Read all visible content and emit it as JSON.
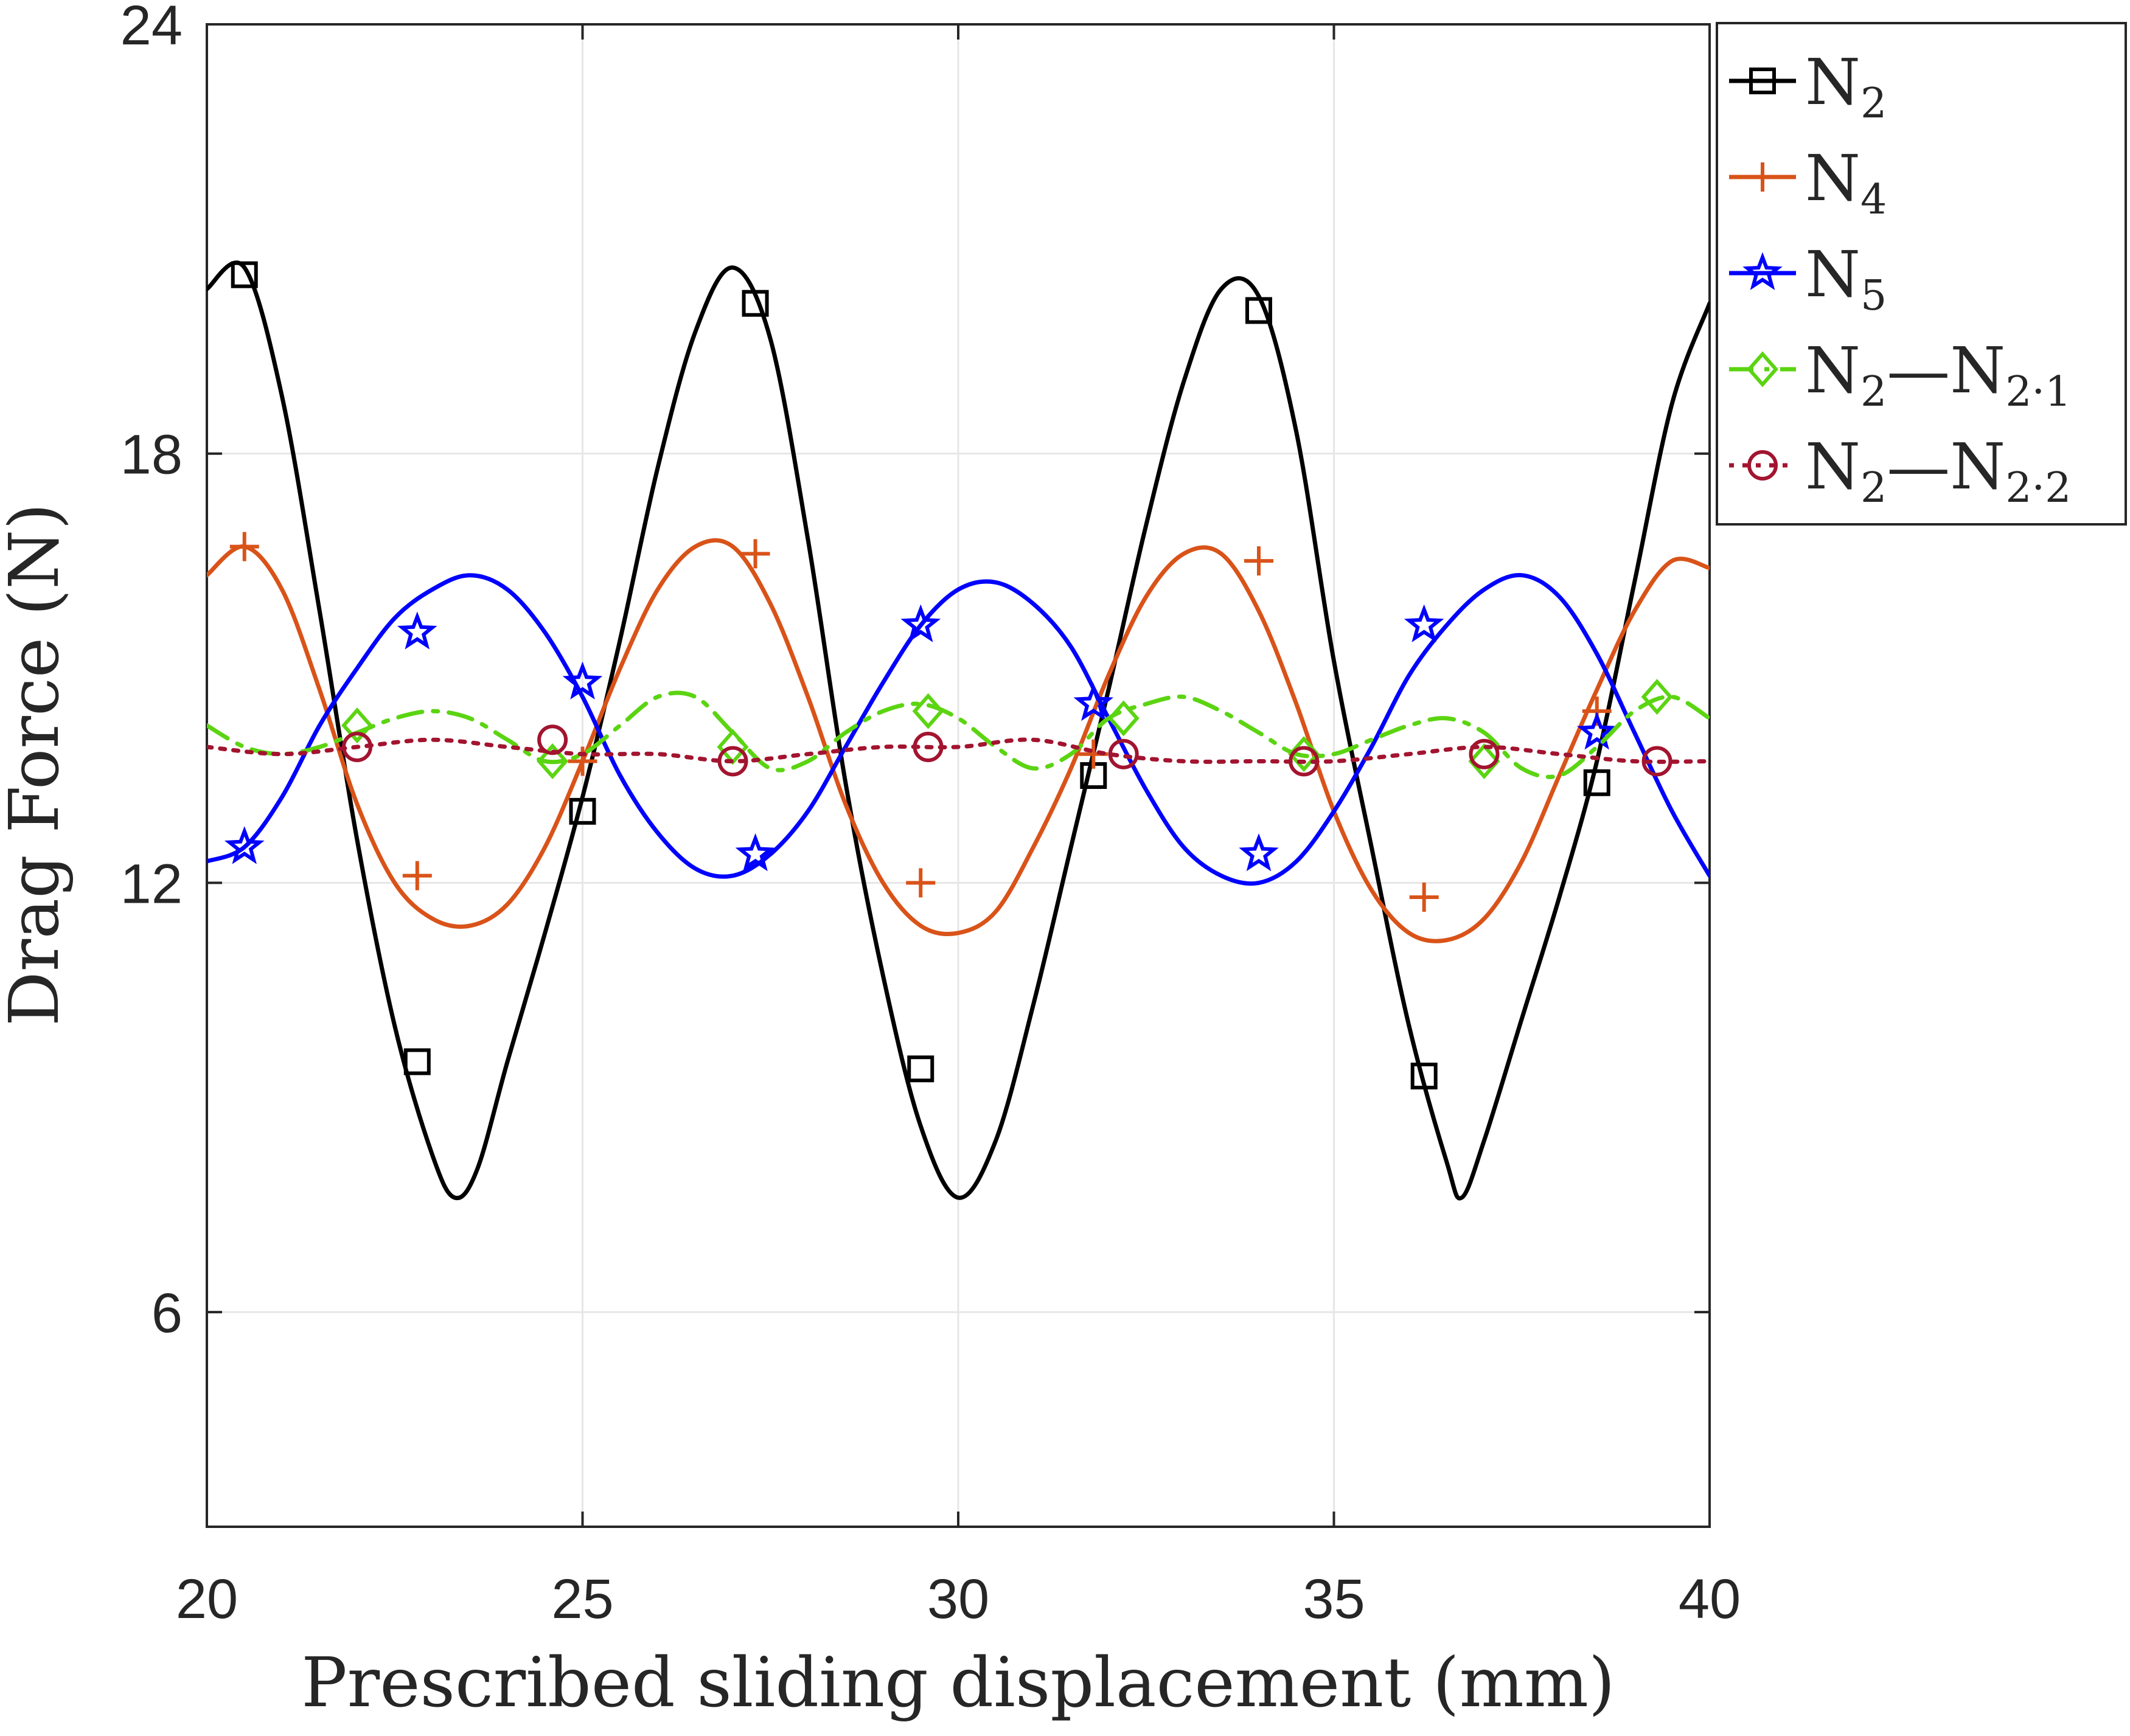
{
  "chart_data": {
    "type": "line",
    "title": "",
    "xlabel": "Prescribed sliding displacement (mm)",
    "ylabel": "Drag Force (N)",
    "xlim": [
      20,
      40
    ],
    "ylim": [
      3,
      24
    ],
    "xticks": [
      20,
      25,
      30,
      35,
      40
    ],
    "yticks": [
      6,
      12,
      18,
      24
    ],
    "xtick_labels": [
      "20",
      "25",
      "30",
      "35",
      "40"
    ],
    "ytick_labels": [
      "6",
      "12",
      "18",
      "24"
    ],
    "grid": true,
    "legend_position": "outside top-right",
    "series": [
      {
        "name": "N2",
        "label_main": "N",
        "label_sub": "2",
        "label_tail": "",
        "label_tail_sub": "",
        "color": "#000000",
        "marker": "square",
        "dash": "solid",
        "x": [
          20,
          20.5,
          21,
          21.5,
          22,
          22.5,
          23,
          23.3,
          23.6,
          24,
          24.5,
          25,
          25.5,
          26,
          26.5,
          27,
          27.5,
          28,
          28.5,
          29,
          29.5,
          30,
          30.5,
          31,
          31.5,
          32,
          32.5,
          33,
          33.5,
          34,
          34.5,
          35,
          35.5,
          36,
          36.5,
          36.7,
          37,
          37.5,
          38,
          38.5,
          39,
          39.5,
          40
        ],
        "y": [
          20.3,
          20.6,
          18.8,
          15.8,
          12.6,
          10.0,
          8.2,
          7.6,
          8.0,
          9.5,
          11.3,
          13.2,
          15.4,
          17.8,
          19.7,
          20.6,
          19.6,
          16.8,
          13.4,
          10.7,
          8.6,
          7.6,
          8.4,
          10.3,
          12.5,
          14.7,
          17.0,
          19.0,
          20.3,
          20.2,
          18.3,
          15.1,
          12.5,
          10.0,
          8.1,
          7.6,
          8.4,
          10.1,
          11.8,
          13.7,
          16.2,
          18.7,
          20.1
        ],
        "marker_x": [
          20.5,
          22.8,
          25.0,
          27.3,
          29.5,
          31.8,
          34.0,
          36.2,
          38.5
        ],
        "marker_y": [
          20.5,
          9.5,
          13.0,
          20.1,
          9.4,
          13.5,
          20.0,
          9.3,
          13.4
        ]
      },
      {
        "name": "N4",
        "label_main": "N",
        "label_sub": "4",
        "label_tail": "",
        "label_tail_sub": "",
        "color": "#D95319",
        "marker": "plus",
        "dash": "solid",
        "x": [
          20,
          20.5,
          21,
          21.5,
          22,
          22.5,
          23,
          23.5,
          24,
          24.5,
          25,
          25.5,
          26,
          26.5,
          27,
          27.5,
          28,
          28.5,
          29,
          29.5,
          30,
          30.5,
          31,
          31.5,
          32,
          32.5,
          33,
          33.5,
          34,
          34.5,
          35,
          35.5,
          36,
          36.5,
          37,
          37.5,
          38,
          38.5,
          39,
          39.5,
          40
        ],
        "y": [
          16.3,
          16.7,
          16.1,
          14.7,
          13.1,
          12.0,
          11.5,
          11.4,
          11.7,
          12.5,
          13.7,
          15.0,
          16.1,
          16.7,
          16.7,
          15.9,
          14.6,
          13.1,
          12.0,
          11.4,
          11.3,
          11.6,
          12.5,
          13.6,
          14.9,
          16.0,
          16.6,
          16.6,
          15.8,
          14.5,
          13.0,
          11.9,
          11.3,
          11.2,
          11.5,
          12.3,
          13.5,
          14.7,
          15.8,
          16.5,
          16.4
        ],
        "marker_x": [
          20.5,
          22.8,
          25.0,
          27.3,
          29.5,
          31.8,
          34.0,
          36.2,
          38.5
        ],
        "marker_y": [
          16.7,
          12.1,
          13.7,
          16.6,
          12.0,
          13.8,
          16.5,
          11.8,
          14.4
        ]
      },
      {
        "name": "N5",
        "label_main": "N",
        "label_sub": "5",
        "label_tail": "",
        "label_tail_sub": "",
        "color": "#0000FF",
        "marker": "pentagram",
        "dash": "solid",
        "x": [
          20,
          20.5,
          21,
          21.5,
          22,
          22.5,
          23,
          23.5,
          24,
          24.5,
          25,
          25.5,
          26,
          26.5,
          27,
          27.5,
          28,
          28.5,
          29,
          29.5,
          30,
          30.5,
          31,
          31.5,
          32,
          32.5,
          33,
          33.5,
          34,
          34.5,
          35,
          35.5,
          36,
          36.5,
          37,
          37.5,
          38,
          38.5,
          39,
          39.5,
          40
        ],
        "y": [
          12.3,
          12.5,
          13.2,
          14.2,
          15.0,
          15.7,
          16.1,
          16.3,
          16.1,
          15.5,
          14.6,
          13.5,
          12.7,
          12.2,
          12.1,
          12.4,
          13.0,
          13.9,
          14.8,
          15.6,
          16.1,
          16.2,
          15.9,
          15.3,
          14.3,
          13.3,
          12.5,
          12.1,
          12.0,
          12.3,
          13.0,
          13.9,
          14.9,
          15.6,
          16.1,
          16.3,
          16.0,
          15.2,
          14.1,
          13.0,
          12.1
        ],
        "marker_x": [
          20.5,
          22.8,
          25.0,
          27.3,
          29.5,
          31.8,
          34.0,
          36.2,
          38.5
        ],
        "marker_y": [
          12.5,
          15.5,
          14.8,
          12.4,
          15.6,
          14.5,
          12.4,
          15.6,
          14.1
        ]
      },
      {
        "name": "N2—N2·1",
        "label_main": "N",
        "label_sub": "2",
        "label_tail": "—N",
        "label_tail_sub": "2·1",
        "color": "#5BD411",
        "marker": "diamond",
        "dash": "dashdot",
        "x": [
          20,
          20.5,
          21,
          21.5,
          22,
          22.5,
          23,
          23.5,
          24,
          24.5,
          25,
          25.5,
          26,
          26.5,
          27,
          27.5,
          28,
          28.5,
          29,
          29.5,
          30,
          30.5,
          31,
          31.5,
          32,
          32.5,
          33,
          33.5,
          34,
          34.5,
          35,
          35.5,
          36,
          36.5,
          37,
          37.5,
          38,
          38.5,
          39,
          39.5,
          40
        ],
        "y": [
          14.2,
          13.9,
          13.8,
          13.9,
          14.1,
          14.3,
          14.4,
          14.3,
          14.0,
          13.7,
          13.8,
          14.2,
          14.6,
          14.6,
          14.1,
          13.6,
          13.7,
          14.1,
          14.4,
          14.5,
          14.3,
          13.9,
          13.6,
          13.8,
          14.3,
          14.5,
          14.6,
          14.4,
          14.1,
          13.8,
          13.8,
          14.0,
          14.2,
          14.3,
          14.1,
          13.6,
          13.5,
          13.9,
          14.4,
          14.6,
          14.3
        ],
        "marker_x": [
          22.0,
          24.6,
          27.0,
          29.6,
          32.2,
          34.6,
          37.0,
          39.3
        ],
        "marker_y": [
          14.2,
          13.7,
          13.9,
          14.4,
          14.3,
          13.8,
          13.7,
          14.6
        ]
      },
      {
        "name": "N2—N2·2",
        "label_main": "N",
        "label_sub": "2",
        "label_tail": "—N",
        "label_tail_sub": "2·2",
        "color": "#A2142F",
        "marker": "circle",
        "dash": "dotted",
        "x": [
          20,
          21,
          22,
          23,
          24,
          25,
          26,
          27,
          28,
          29,
          30,
          31,
          32,
          33,
          34,
          35,
          36,
          37,
          38,
          39,
          40
        ],
        "y": [
          13.9,
          13.8,
          13.9,
          14.0,
          13.9,
          13.8,
          13.8,
          13.7,
          13.8,
          13.9,
          13.9,
          14.0,
          13.8,
          13.7,
          13.7,
          13.7,
          13.8,
          13.9,
          13.8,
          13.7,
          13.7
        ],
        "marker_x": [
          22.0,
          24.6,
          27.0,
          29.6,
          32.2,
          34.6,
          37.0,
          39.3
        ],
        "marker_y": [
          13.9,
          14.0,
          13.7,
          13.9,
          13.8,
          13.7,
          13.8,
          13.7
        ]
      }
    ]
  }
}
